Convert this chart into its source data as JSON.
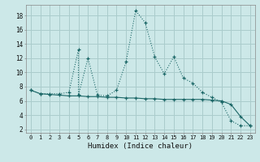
{
  "title": "",
  "xlabel": "Humidex (Indice chaleur)",
  "background_color": "#cce8e8",
  "grid_color": "#aacccc",
  "line_color": "#1a6666",
  "x_ticks": [
    0,
    1,
    2,
    3,
    4,
    5,
    6,
    7,
    8,
    9,
    10,
    11,
    12,
    13,
    14,
    15,
    16,
    17,
    18,
    19,
    20,
    21,
    22,
    23
  ],
  "y_ticks": [
    2,
    4,
    6,
    8,
    10,
    12,
    14,
    16,
    18
  ],
  "ylim": [
    1.5,
    19.5
  ],
  "xlim": [
    -0.5,
    23.5
  ],
  "series1_x": [
    0,
    1,
    2,
    3,
    4,
    5,
    5,
    6,
    7,
    8,
    9,
    10,
    11,
    12,
    13,
    14,
    15,
    16,
    17,
    18,
    19,
    20,
    21,
    22,
    23
  ],
  "series1_y": [
    7.5,
    7.0,
    7.0,
    7.0,
    7.2,
    13.2,
    6.8,
    12.0,
    6.8,
    6.7,
    7.5,
    11.5,
    18.7,
    17.0,
    12.2,
    9.8,
    12.2,
    9.2,
    8.5,
    7.2,
    6.5,
    5.8,
    3.2,
    2.5,
    2.5
  ],
  "series2_x": [
    0,
    1,
    2,
    3,
    4,
    5,
    6,
    7,
    8,
    9,
    10,
    11,
    12,
    13,
    14,
    15,
    16,
    17,
    18,
    19,
    20,
    21,
    22,
    23
  ],
  "series2_y": [
    7.5,
    7.0,
    6.9,
    6.8,
    6.7,
    6.7,
    6.6,
    6.6,
    6.5,
    6.5,
    6.4,
    6.4,
    6.3,
    6.3,
    6.2,
    6.2,
    6.2,
    6.2,
    6.2,
    6.1,
    6.0,
    5.5,
    3.8,
    2.5
  ]
}
